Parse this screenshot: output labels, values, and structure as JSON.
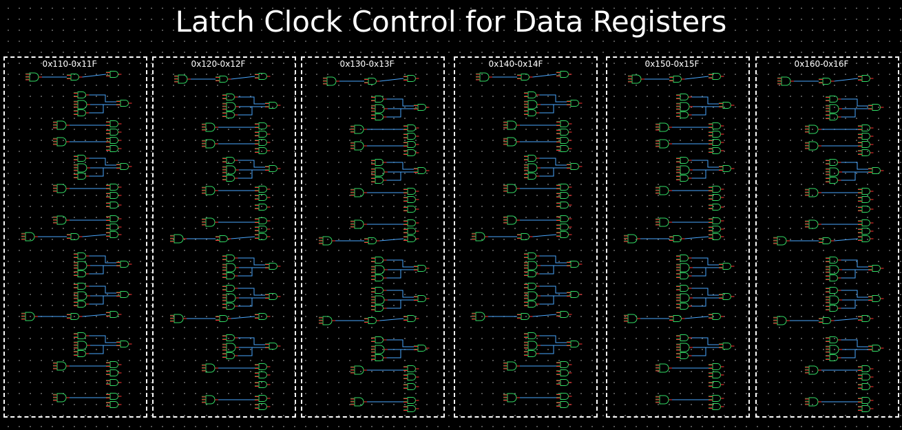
{
  "title": "Latch Clock Control for Data Registers",
  "colors": {
    "background": "#000000",
    "text": "#ffffff",
    "panel_border": "#ffffff",
    "gate_outline": "#33dd66",
    "pin": "#ff3333",
    "wire": "#4aa8ff",
    "grid_dot": "#6a6a6a"
  },
  "panels": [
    {
      "label": "0x110-0x11F"
    },
    {
      "label": "0x120-0x12F"
    },
    {
      "label": "0x130-0x13F"
    },
    {
      "label": "0x140-0x14F"
    },
    {
      "label": "0x150-0x15F"
    },
    {
      "label": "0x160-0x16F"
    }
  ]
}
